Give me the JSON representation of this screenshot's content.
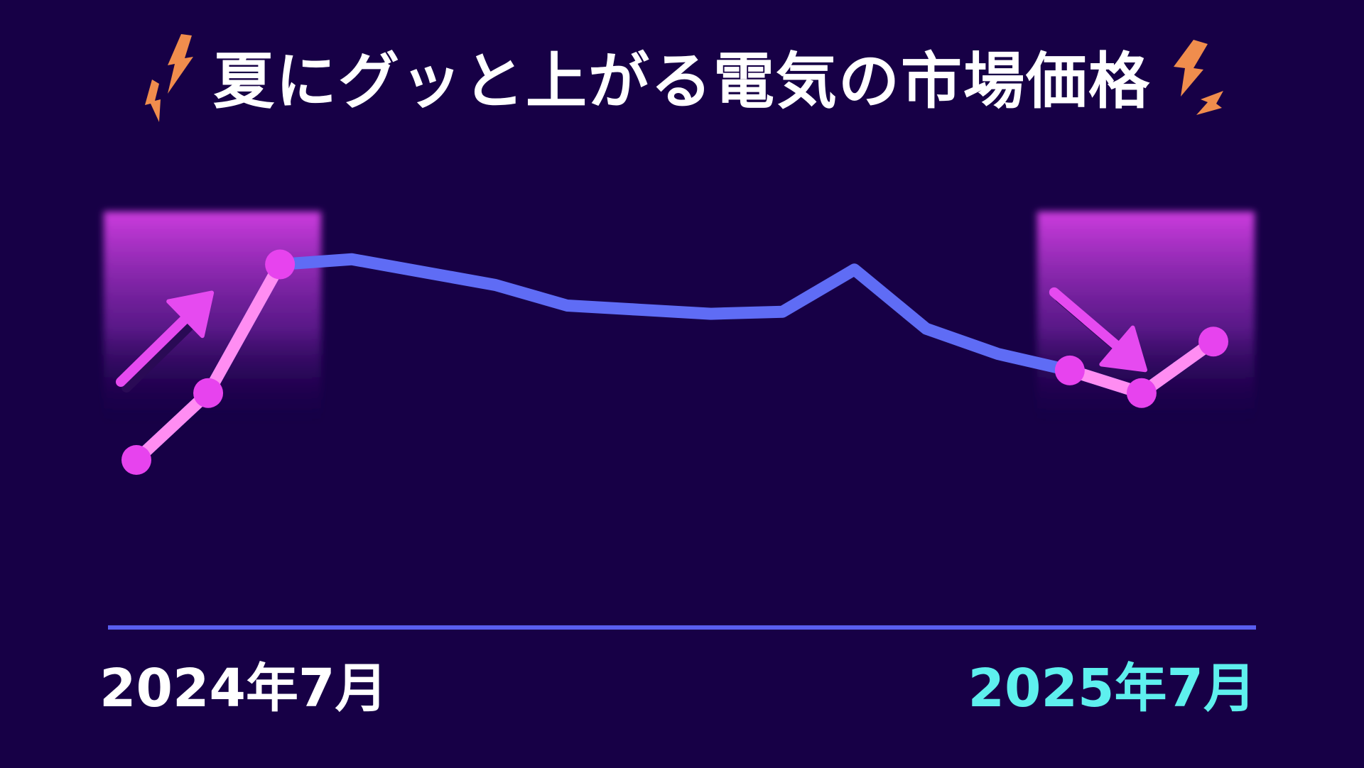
{
  "title": "夏にグッと上がる電気の市場価格",
  "colors": {
    "background": "#170046",
    "main_line": "#5f6cf5",
    "rise_segment": "#ff8df2",
    "marker": "#e743ee",
    "arrow": "#e64af0",
    "highlight": "#d63fe6",
    "bolt": "#f08d4d",
    "baseline": "#5a5ef0",
    "label_start": "#ffffff",
    "label_end": "#5ef0ee"
  },
  "chart_data": {
    "type": "line",
    "title": "夏にグッと上がる電気の市場価格",
    "x_start_label": "2024年7月",
    "x_end_label": "2025年7月",
    "yaxis_shown": false,
    "grid": false,
    "y_values": [
      32,
      45,
      70,
      71,
      68.5,
      66,
      62,
      61.2,
      60.4,
      60.8,
      69,
      57.5,
      52.6,
      49.4,
      45,
      55
    ],
    "rising_ranges": [
      [
        0,
        2
      ],
      [
        13,
        15
      ]
    ],
    "highlighted_ranges": [
      [
        0,
        2
      ],
      [
        13,
        15
      ]
    ],
    "ylim": [
      0,
      80
    ]
  }
}
